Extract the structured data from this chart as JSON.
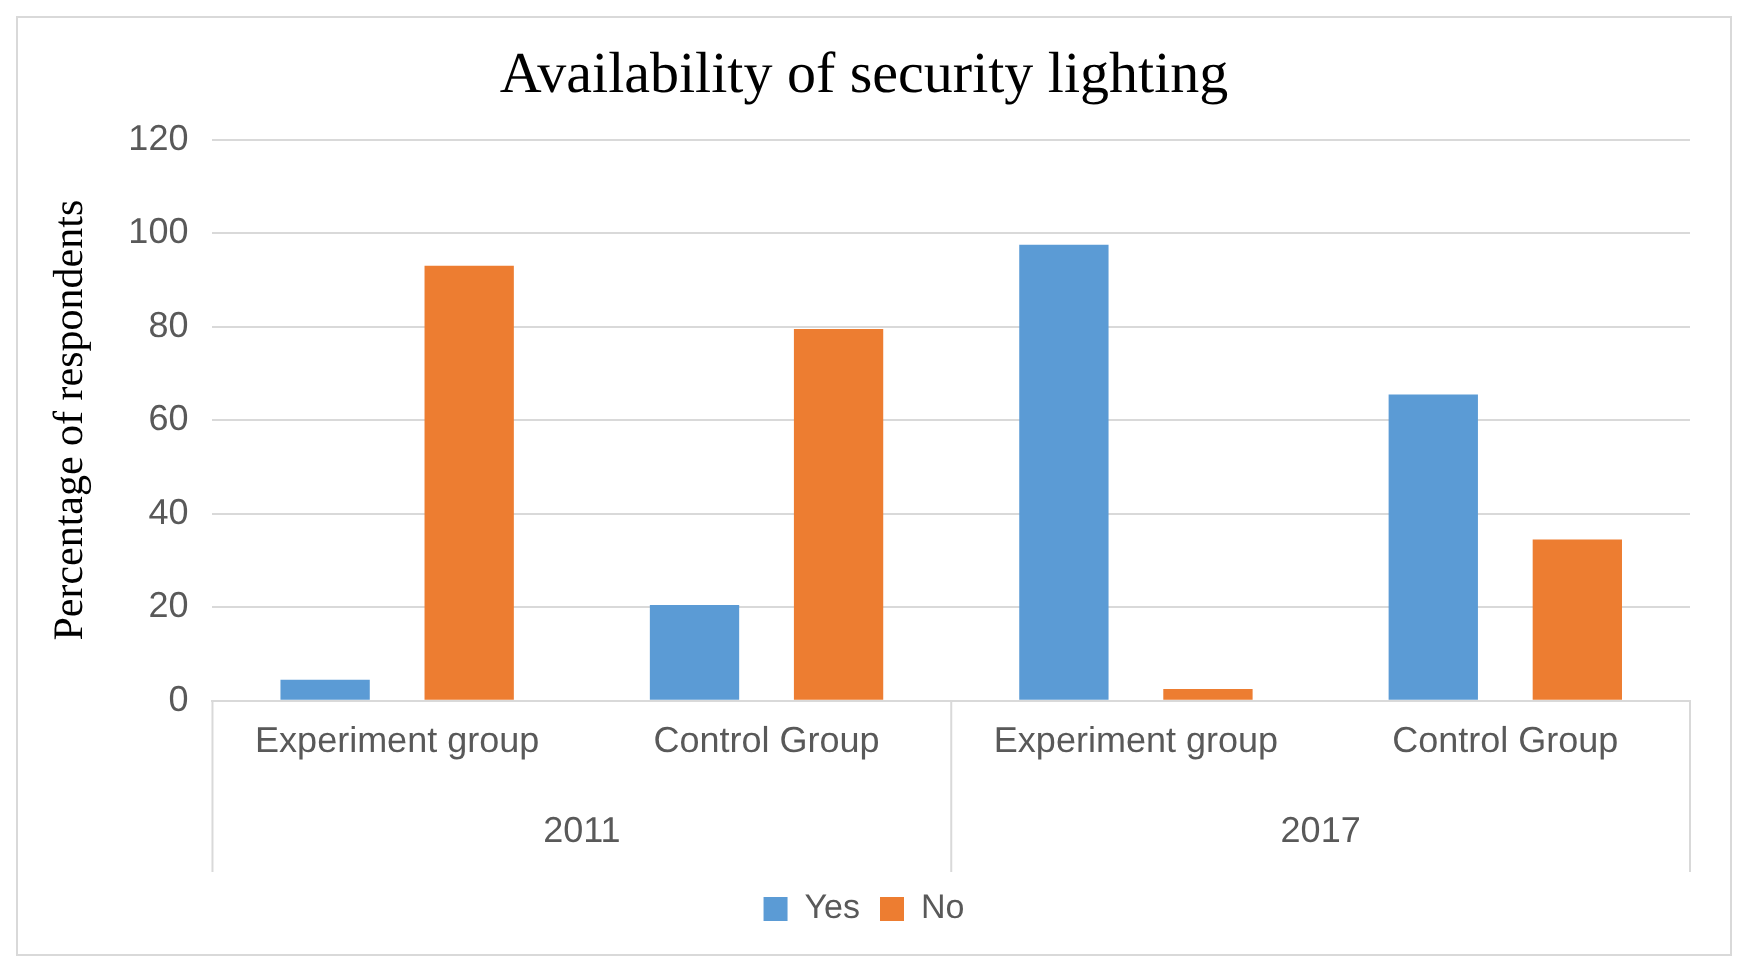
{
  "chart_data": {
    "type": "bar",
    "title": "Availability of security lighting",
    "ylabel": "Percentage of respondents",
    "categories": [
      "Experiment group",
      "Control Group",
      "Experiment group",
      "Control Group"
    ],
    "annotations": [
      "2011",
      "2017"
    ],
    "series": [
      {
        "name": "Yes",
        "color": "#5b9bd5",
        "values": [
          4.5,
          20.5,
          97.5,
          65.5
        ]
      },
      {
        "name": "No",
        "color": "#ed7d31",
        "values": [
          93,
          79.5,
          2.5,
          34.5
        ]
      }
    ],
    "ylim": [
      0,
      120
    ],
    "yticks": [
      0,
      20,
      40,
      60,
      80,
      100,
      120
    ],
    "grid": "y",
    "legend": "bottom"
  }
}
